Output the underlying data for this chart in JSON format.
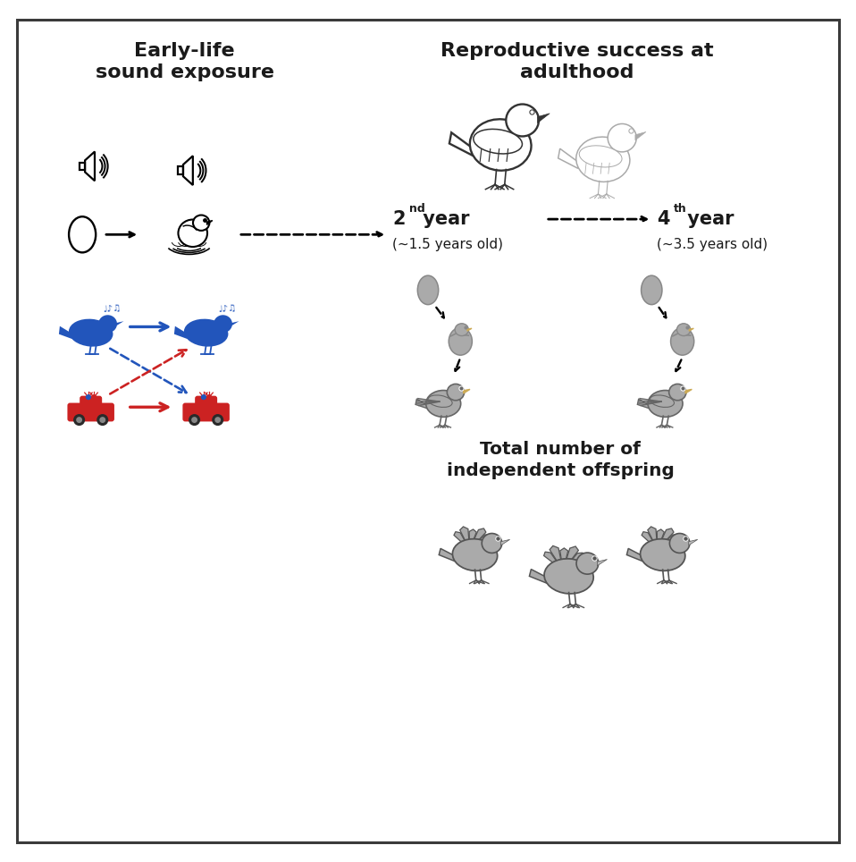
{
  "title_left": "Early-life\nsound exposure",
  "title_right": "Reproductive success at\nadulthood",
  "label_offspring": "Total number of\nindependent offspring",
  "bg_color": "#ffffff",
  "border_color": "#3a3a3a",
  "text_color": "#1a1a1a",
  "blue": "#2255bb",
  "red": "#cc2222",
  "gray": "#999999",
  "darkgray": "#666666",
  "lightgray": "#bbbbbb",
  "figwidth": 9.58,
  "figheight": 9.64,
  "dpi": 100
}
